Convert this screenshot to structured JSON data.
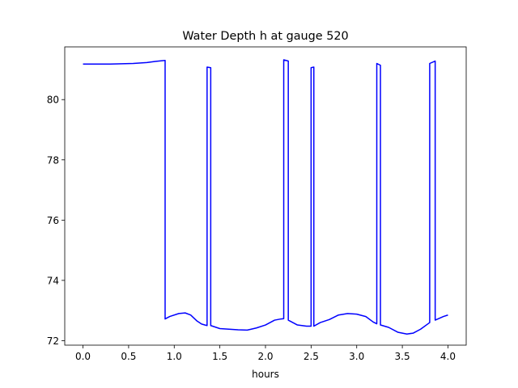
{
  "chart_data": {
    "type": "line",
    "title": "Water Depth h at gauge 520",
    "xlabel": "hours",
    "ylabel": "",
    "xlim": [
      -0.2,
      4.2
    ],
    "ylim": [
      71.85,
      81.75
    ],
    "xticks": [
      0.0,
      0.5,
      1.0,
      1.5,
      2.0,
      2.5,
      3.0,
      3.5,
      4.0
    ],
    "xtick_labels": [
      "0.0",
      "0.5",
      "1.0",
      "1.5",
      "2.0",
      "2.5",
      "3.0",
      "3.5",
      "4.0"
    ],
    "yticks": [
      72,
      74,
      76,
      78,
      80
    ],
    "ytick_labels": [
      "72",
      "74",
      "76",
      "78",
      "80"
    ],
    "grid": false,
    "legend": "none",
    "series": [
      {
        "color": "#0000ff",
        "x": [
          0.0,
          0.3,
          0.55,
          0.7,
          0.8,
          0.9,
          0.9,
          0.95,
          1.05,
          1.12,
          1.18,
          1.25,
          1.3,
          1.36,
          1.36,
          1.4,
          1.4,
          1.5,
          1.6,
          1.7,
          1.8,
          1.9,
          2.0,
          2.1,
          2.17,
          2.2,
          2.2,
          2.25,
          2.25,
          2.35,
          2.45,
          2.5,
          2.5,
          2.53,
          2.53,
          2.6,
          2.7,
          2.8,
          2.9,
          3.0,
          3.1,
          3.18,
          3.22,
          3.22,
          3.26,
          3.26,
          3.35,
          3.45,
          3.55,
          3.62,
          3.7,
          3.8,
          3.8,
          3.86,
          3.86,
          3.95,
          4.0
        ],
        "y": [
          81.18,
          81.18,
          81.2,
          81.23,
          81.27,
          81.3,
          72.72,
          72.8,
          72.9,
          72.92,
          72.85,
          72.65,
          72.55,
          72.5,
          81.08,
          81.06,
          72.5,
          72.4,
          72.38,
          72.36,
          72.35,
          72.42,
          72.52,
          72.68,
          72.72,
          72.73,
          81.32,
          81.28,
          72.68,
          72.52,
          72.48,
          72.48,
          81.06,
          81.08,
          72.48,
          72.6,
          72.7,
          72.85,
          72.9,
          72.88,
          72.8,
          72.62,
          72.56,
          81.2,
          81.14,
          72.52,
          72.44,
          72.28,
          72.22,
          72.25,
          72.38,
          72.6,
          81.2,
          81.28,
          72.68,
          72.8,
          72.85
        ]
      }
    ]
  }
}
